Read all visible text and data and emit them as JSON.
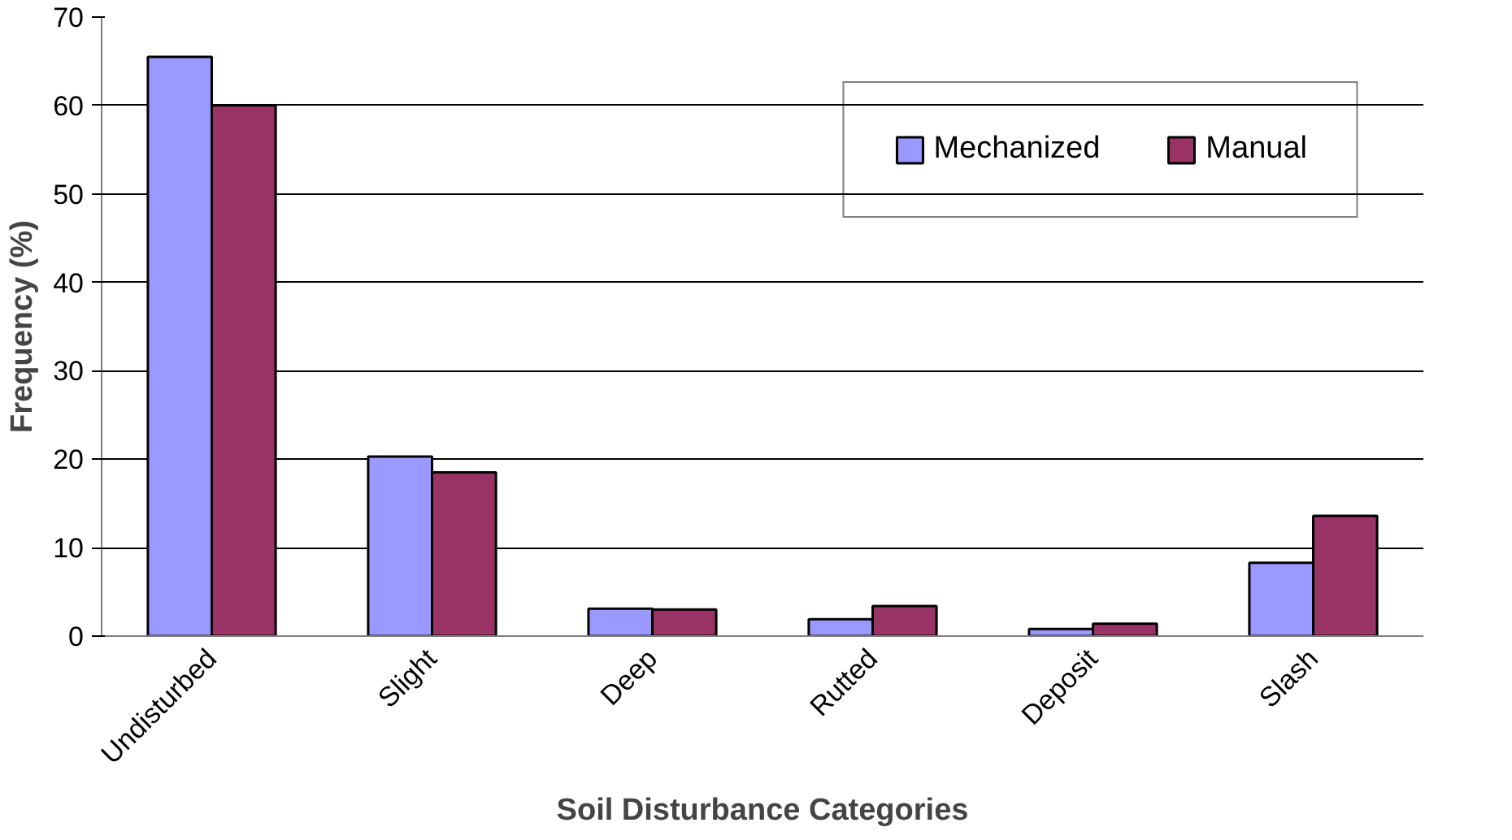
{
  "chart_data": {
    "type": "bar",
    "xlabel": "Soil Disturbance Categories",
    "ylabel": "Frequency (%)",
    "categories": [
      "Undisturbed",
      "Slight",
      "Deep",
      "Rutted",
      "Deposit",
      "Slash"
    ],
    "series": [
      {
        "name": "Mechanized",
        "color": "#9999ff",
        "values": [
          65.5,
          20.3,
          3.1,
          1.9,
          0.8,
          8.3
        ]
      },
      {
        "name": "Manual",
        "color": "#993366",
        "values": [
          60.0,
          18.5,
          3.0,
          3.4,
          1.4,
          13.6
        ]
      }
    ],
    "ylim": [
      0,
      70
    ],
    "yticks": [
      0,
      10,
      20,
      30,
      40,
      50,
      60,
      70
    ],
    "grid": "y",
    "legend": "top right"
  }
}
